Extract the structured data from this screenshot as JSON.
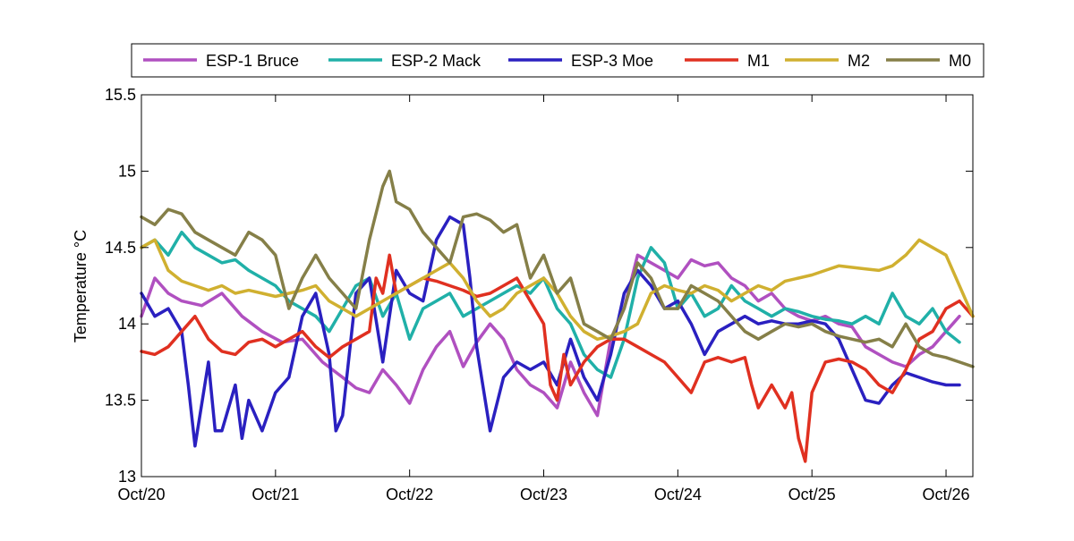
{
  "chart_data": {
    "type": "line",
    "xlabel": "",
    "ylabel": "Temperature °C",
    "xlim": [
      0,
      6.2
    ],
    "ylim": [
      13,
      15.5
    ],
    "x_tick_values": [
      0,
      1,
      2,
      3,
      4,
      5,
      6
    ],
    "x_tick_labels": [
      "Oct/20",
      "Oct/21",
      "Oct/22",
      "Oct/23",
      "Oct/24",
      "Oct/25",
      "Oct/26"
    ],
    "y_tick_values": [
      13,
      13.5,
      14,
      14.5,
      15,
      15.5
    ],
    "y_tick_labels": [
      "13",
      "13.5",
      "14",
      "14.5",
      "15",
      "15.5"
    ],
    "grid": false,
    "legend_position": "top",
    "series": [
      {
        "name": "ESP-1 Bruce",
        "color": "#b050c0",
        "x": [
          0,
          0.1,
          0.2,
          0.3,
          0.45,
          0.6,
          0.75,
          0.9,
          1.05,
          1.2,
          1.35,
          1.5,
          1.6,
          1.7,
          1.8,
          1.9,
          2.0,
          2.1,
          2.2,
          2.3,
          2.4,
          2.5,
          2.6,
          2.7,
          2.8,
          2.9,
          3.0,
          3.1,
          3.2,
          3.3,
          3.4,
          3.5,
          3.6,
          3.7,
          3.8,
          3.9,
          4.0,
          4.1,
          4.2,
          4.3,
          4.4,
          4.5,
          4.6,
          4.7,
          4.8,
          4.9,
          5.0,
          5.1,
          5.2,
          5.3,
          5.4,
          5.5,
          5.6,
          5.7,
          5.8,
          5.9,
          6.0,
          6.1
        ],
        "y": [
          14.05,
          14.3,
          14.2,
          14.15,
          14.12,
          14.2,
          14.05,
          13.95,
          13.88,
          13.9,
          13.75,
          13.65,
          13.58,
          13.55,
          13.7,
          13.6,
          13.48,
          13.7,
          13.85,
          13.95,
          13.72,
          13.88,
          14.0,
          13.9,
          13.7,
          13.6,
          13.55,
          13.45,
          13.75,
          13.55,
          13.4,
          13.9,
          14.1,
          14.45,
          14.4,
          14.35,
          14.3,
          14.42,
          14.38,
          14.4,
          14.3,
          14.25,
          14.15,
          14.2,
          14.1,
          14.05,
          14.02,
          14.05,
          14.0,
          13.98,
          13.85,
          13.8,
          13.75,
          13.72,
          13.8,
          13.85,
          13.95,
          14.05
        ]
      },
      {
        "name": "ESP-2 Mack",
        "color": "#20b0a8",
        "x": [
          0,
          0.1,
          0.2,
          0.3,
          0.4,
          0.5,
          0.6,
          0.7,
          0.8,
          0.9,
          1.0,
          1.1,
          1.2,
          1.3,
          1.4,
          1.5,
          1.6,
          1.7,
          1.8,
          1.9,
          2.0,
          2.1,
          2.2,
          2.3,
          2.4,
          2.5,
          2.6,
          2.7,
          2.8,
          2.9,
          3.0,
          3.1,
          3.2,
          3.3,
          3.4,
          3.5,
          3.6,
          3.7,
          3.8,
          3.9,
          4.0,
          4.1,
          4.2,
          4.3,
          4.4,
          4.5,
          4.6,
          4.7,
          4.8,
          4.9,
          5.0,
          5.1,
          5.2,
          5.3,
          5.4,
          5.5,
          5.6,
          5.7,
          5.8,
          5.9,
          6.0,
          6.1
        ],
        "y": [
          14.5,
          14.55,
          14.45,
          14.6,
          14.5,
          14.45,
          14.4,
          14.42,
          14.35,
          14.3,
          14.25,
          14.15,
          14.1,
          14.05,
          13.95,
          14.1,
          14.25,
          14.3,
          14.05,
          14.2,
          13.9,
          14.1,
          14.15,
          14.2,
          14.05,
          14.1,
          14.15,
          14.2,
          14.25,
          14.2,
          14.3,
          14.1,
          14.0,
          13.8,
          13.7,
          13.65,
          13.9,
          14.3,
          14.5,
          14.4,
          14.1,
          14.2,
          14.05,
          14.1,
          14.25,
          14.15,
          14.1,
          14.05,
          14.1,
          14.08,
          14.05,
          14.03,
          14.02,
          14.0,
          14.05,
          14.0,
          14.2,
          14.05,
          14.0,
          14.1,
          13.95,
          13.88
        ]
      },
      {
        "name": "ESP-3 Moe",
        "color": "#2a20c0",
        "x": [
          0,
          0.1,
          0.2,
          0.3,
          0.35,
          0.4,
          0.5,
          0.55,
          0.6,
          0.7,
          0.75,
          0.8,
          0.9,
          1.0,
          1.1,
          1.2,
          1.3,
          1.4,
          1.45,
          1.5,
          1.6,
          1.7,
          1.8,
          1.9,
          2.0,
          2.1,
          2.2,
          2.3,
          2.4,
          2.45,
          2.5,
          2.6,
          2.7,
          2.8,
          2.9,
          3.0,
          3.1,
          3.2,
          3.3,
          3.4,
          3.5,
          3.6,
          3.7,
          3.8,
          3.9,
          4.0,
          4.1,
          4.2,
          4.3,
          4.4,
          4.5,
          4.6,
          4.7,
          4.8,
          4.9,
          5.0,
          5.1,
          5.2,
          5.3,
          5.4,
          5.5,
          5.6,
          5.7,
          5.8,
          5.9,
          6.0,
          6.1
        ],
        "y": [
          14.2,
          14.05,
          14.1,
          13.95,
          13.6,
          13.2,
          13.75,
          13.3,
          13.3,
          13.6,
          13.25,
          13.5,
          13.3,
          13.55,
          13.65,
          14.05,
          14.2,
          13.8,
          13.3,
          13.4,
          14.2,
          14.3,
          13.75,
          14.35,
          14.2,
          14.15,
          14.55,
          14.7,
          14.65,
          14.3,
          13.85,
          13.3,
          13.65,
          13.75,
          13.7,
          13.75,
          13.6,
          13.9,
          13.65,
          13.5,
          13.8,
          14.2,
          14.35,
          14.25,
          14.1,
          14.15,
          14.0,
          13.8,
          13.95,
          14.0,
          14.05,
          14.0,
          14.02,
          14.0,
          14.0,
          14.02,
          14.0,
          13.9,
          13.7,
          13.5,
          13.48,
          13.6,
          13.68,
          13.65,
          13.62,
          13.6,
          13.6
        ]
      },
      {
        "name": "M1",
        "color": "#e03020",
        "x": [
          0,
          0.1,
          0.2,
          0.3,
          0.4,
          0.5,
          0.6,
          0.7,
          0.8,
          0.9,
          1.0,
          1.1,
          1.2,
          1.3,
          1.4,
          1.5,
          1.6,
          1.7,
          1.75,
          1.8,
          1.85,
          1.9,
          2.0,
          2.1,
          2.2,
          2.3,
          2.4,
          2.5,
          2.6,
          2.7,
          2.8,
          2.9,
          3.0,
          3.05,
          3.1,
          3.15,
          3.2,
          3.3,
          3.4,
          3.5,
          3.6,
          3.7,
          3.8,
          3.9,
          4.0,
          4.1,
          4.2,
          4.3,
          4.4,
          4.5,
          4.55,
          4.6,
          4.7,
          4.8,
          4.85,
          4.9,
          4.95,
          5.0,
          5.1,
          5.2,
          5.3,
          5.4,
          5.5,
          5.6,
          5.7,
          5.8,
          5.9,
          6.0,
          6.1,
          6.2
        ],
        "y": [
          13.82,
          13.8,
          13.85,
          13.95,
          14.05,
          13.9,
          13.82,
          13.8,
          13.88,
          13.9,
          13.85,
          13.9,
          13.95,
          13.85,
          13.78,
          13.85,
          13.9,
          13.95,
          14.3,
          14.2,
          14.45,
          14.2,
          14.25,
          14.3,
          14.28,
          14.25,
          14.22,
          14.18,
          14.2,
          14.25,
          14.3,
          14.15,
          14.0,
          13.6,
          13.5,
          13.8,
          13.6,
          13.75,
          13.85,
          13.9,
          13.9,
          13.85,
          13.8,
          13.75,
          13.65,
          13.55,
          13.75,
          13.78,
          13.75,
          13.78,
          13.6,
          13.45,
          13.6,
          13.45,
          13.55,
          13.25,
          13.1,
          13.55,
          13.75,
          13.77,
          13.75,
          13.7,
          13.6,
          13.55,
          13.7,
          13.9,
          13.95,
          14.1,
          14.15,
          14.05
        ]
      },
      {
        "name": "M2",
        "color": "#d0b030",
        "x": [
          0,
          0.1,
          0.2,
          0.3,
          0.4,
          0.5,
          0.6,
          0.7,
          0.8,
          0.9,
          1.0,
          1.1,
          1.2,
          1.3,
          1.4,
          1.5,
          1.6,
          1.7,
          1.8,
          1.9,
          2.0,
          2.1,
          2.2,
          2.3,
          2.4,
          2.5,
          2.6,
          2.7,
          2.8,
          2.9,
          3.0,
          3.1,
          3.2,
          3.3,
          3.4,
          3.5,
          3.6,
          3.7,
          3.8,
          3.9,
          4.0,
          4.1,
          4.2,
          4.3,
          4.4,
          4.5,
          4.6,
          4.7,
          4.8,
          4.9,
          5.0,
          5.1,
          5.2,
          5.3,
          5.4,
          5.5,
          5.6,
          5.7,
          5.8,
          5.9,
          6.0,
          6.1,
          6.2
        ],
        "y": [
          14.5,
          14.55,
          14.35,
          14.28,
          14.25,
          14.22,
          14.25,
          14.2,
          14.22,
          14.2,
          14.18,
          14.2,
          14.22,
          14.25,
          14.15,
          14.1,
          14.05,
          14.1,
          14.15,
          14.2,
          14.25,
          14.3,
          14.35,
          14.4,
          14.3,
          14.15,
          14.05,
          14.1,
          14.2,
          14.25,
          14.3,
          14.2,
          14.05,
          13.95,
          13.9,
          13.92,
          13.95,
          14.0,
          14.2,
          14.25,
          14.22,
          14.2,
          14.25,
          14.22,
          14.15,
          14.2,
          14.25,
          14.22,
          14.28,
          14.3,
          14.32,
          14.35,
          14.38,
          14.37,
          14.36,
          14.35,
          14.38,
          14.45,
          14.55,
          14.5,
          14.45,
          14.25,
          14.05
        ]
      },
      {
        "name": "M0",
        "color": "#857f48",
        "x": [
          0,
          0.1,
          0.2,
          0.3,
          0.4,
          0.5,
          0.6,
          0.7,
          0.8,
          0.9,
          1.0,
          1.1,
          1.2,
          1.3,
          1.4,
          1.5,
          1.6,
          1.7,
          1.8,
          1.85,
          1.9,
          2.0,
          2.1,
          2.2,
          2.3,
          2.4,
          2.5,
          2.6,
          2.7,
          2.8,
          2.9,
          3.0,
          3.1,
          3.2,
          3.3,
          3.4,
          3.5,
          3.6,
          3.7,
          3.8,
          3.9,
          4.0,
          4.1,
          4.2,
          4.3,
          4.4,
          4.5,
          4.6,
          4.7,
          4.8,
          4.9,
          5.0,
          5.1,
          5.2,
          5.3,
          5.4,
          5.5,
          5.6,
          5.7,
          5.8,
          5.9,
          6.0,
          6.1,
          6.2
        ],
        "y": [
          14.7,
          14.65,
          14.75,
          14.72,
          14.6,
          14.55,
          14.5,
          14.45,
          14.6,
          14.55,
          14.45,
          14.1,
          14.3,
          14.45,
          14.3,
          14.2,
          14.1,
          14.55,
          14.9,
          15.0,
          14.8,
          14.75,
          14.6,
          14.5,
          14.4,
          14.7,
          14.72,
          14.68,
          14.6,
          14.65,
          14.3,
          14.45,
          14.2,
          14.3,
          14.0,
          13.95,
          13.9,
          14.1,
          14.4,
          14.3,
          14.1,
          14.1,
          14.25,
          14.2,
          14.15,
          14.05,
          13.95,
          13.9,
          13.95,
          14.0,
          13.98,
          14.0,
          13.95,
          13.92,
          13.9,
          13.88,
          13.9,
          13.85,
          14.0,
          13.85,
          13.8,
          13.78,
          13.75,
          13.72
        ]
      }
    ]
  }
}
